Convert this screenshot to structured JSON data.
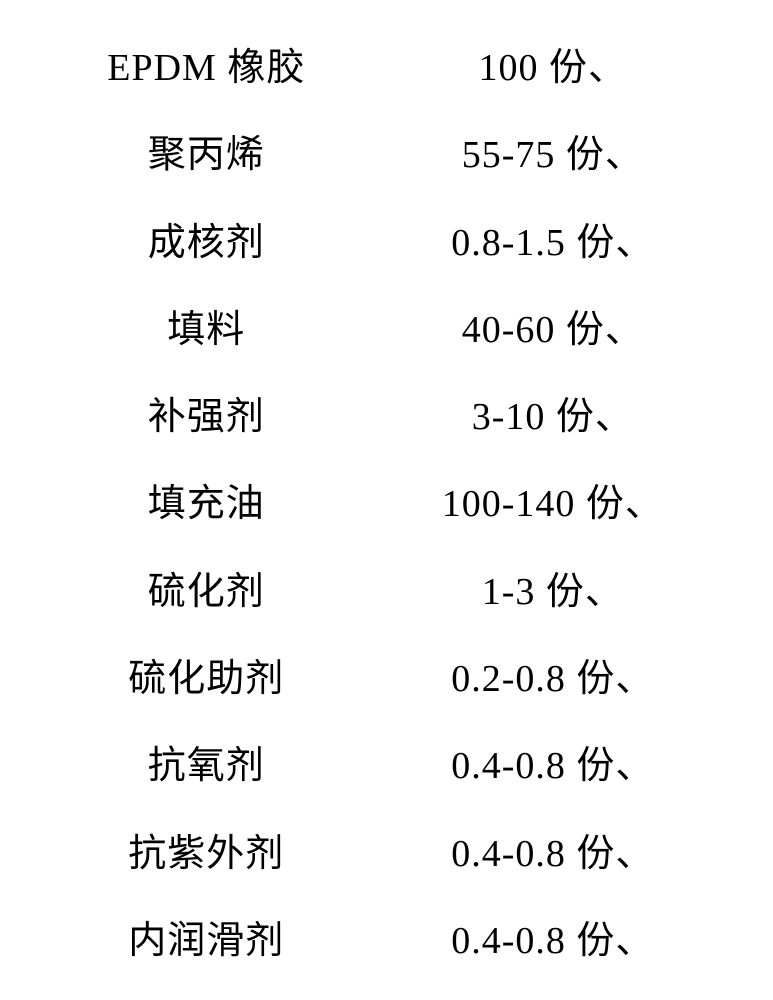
{
  "table": {
    "background_color": "#ffffff",
    "text_color": "#000000",
    "font_size": 38,
    "font_family": "SimSun",
    "rows": [
      {
        "label": "EPDM 橡胶",
        "value": "100 份、"
      },
      {
        "label": "聚丙烯",
        "value": "55-75 份、"
      },
      {
        "label": "成核剂",
        "value": "0.8-1.5 份、"
      },
      {
        "label": "填料",
        "value": "40-60 份、"
      },
      {
        "label": "补强剂",
        "value": "3-10 份、"
      },
      {
        "label": "填充油",
        "value": "100-140 份、"
      },
      {
        "label": "硫化剂",
        "value": "1-3 份、"
      },
      {
        "label": "硫化助剂",
        "value": "0.2-0.8 份、"
      },
      {
        "label": "抗氧剂",
        "value": "0.4-0.8 份、"
      },
      {
        "label": "抗紫外剂",
        "value": "0.4-0.8 份、"
      },
      {
        "label": "内润滑剂",
        "value": "0.4-0.8 份、"
      }
    ]
  }
}
